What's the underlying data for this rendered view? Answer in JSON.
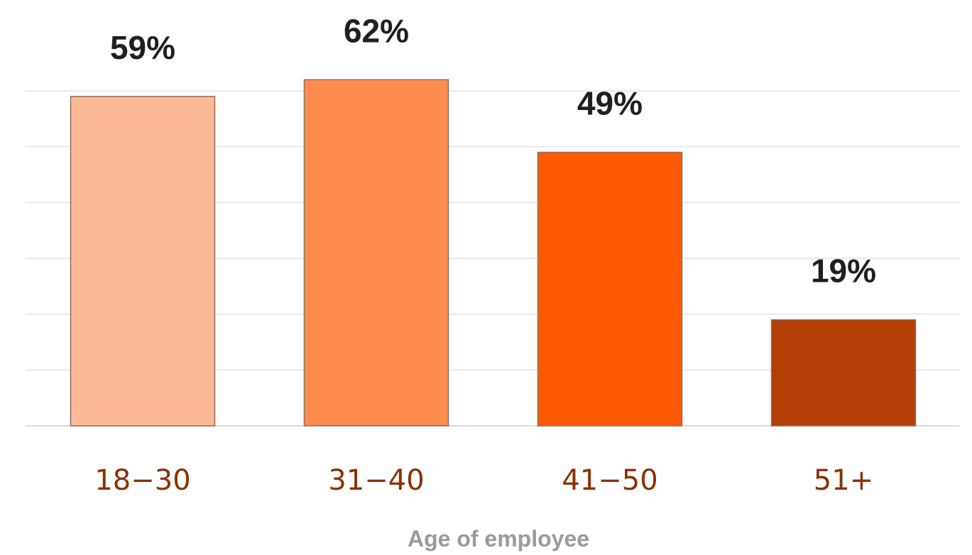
{
  "chart_data": {
    "type": "bar",
    "title": "",
    "xlabel": "Age of employee",
    "ylabel": "",
    "ylim": [
      0,
      60
    ],
    "grid": true,
    "legend": "none",
    "categories": [
      "18-30",
      "31-40",
      "41-50",
      "51+"
    ],
    "values": [
      59,
      62,
      49,
      19
    ],
    "value_labels": [
      "59%",
      "62%",
      "49%",
      "19%"
    ],
    "tick_labels": [
      "18−30",
      "31−40",
      "41−50",
      "51+"
    ],
    "colors": [
      "#fdb995",
      "#fd8c4e",
      "#fe5a03",
      "#b33e06"
    ],
    "label_color": "#8a3100"
  }
}
